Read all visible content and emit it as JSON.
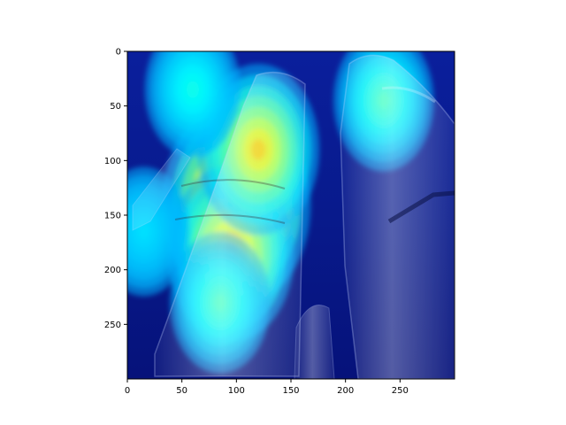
{
  "chart_data": {
    "type": "heatmap",
    "title": "",
    "xlabel": "",
    "ylabel": "",
    "image_size": [
      300,
      300
    ],
    "xlim": [
      0,
      300
    ],
    "ylim": [
      300,
      0
    ],
    "x_ticks": [
      0,
      50,
      100,
      150,
      200,
      250
    ],
    "y_ticks": [
      0,
      50,
      100,
      150,
      200,
      250
    ],
    "x_tick_labels": [
      "0",
      "50",
      "100",
      "150",
      "200",
      "250"
    ],
    "y_tick_labels": [
      "0",
      "50",
      "100",
      "150",
      "200",
      "250"
    ],
    "colormap": "jet",
    "overlay": "activation heatmap overlaid on photograph of rocket stages",
    "hotspots": [
      {
        "x": 100,
        "y": 140,
        "intensity": 1.0
      },
      {
        "x": 95,
        "y": 185,
        "intensity": 0.75
      },
      {
        "x": 120,
        "y": 90,
        "intensity": 0.7
      },
      {
        "x": 85,
        "y": 230,
        "intensity": 0.45
      },
      {
        "x": 235,
        "y": 45,
        "intensity": 0.45
      },
      {
        "x": 60,
        "y": 35,
        "intensity": 0.4
      },
      {
        "x": 15,
        "y": 165,
        "intensity": 0.35
      }
    ],
    "grid": false,
    "colors": {
      "low": "#00007f",
      "mid": "#00ffff",
      "high": "#ff0000"
    }
  }
}
